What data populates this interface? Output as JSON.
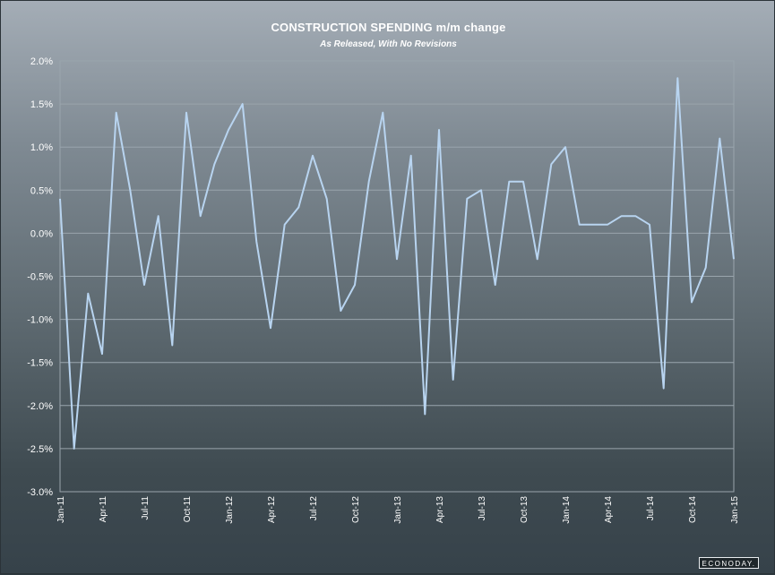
{
  "header": {
    "title": "CONSTRUCTION SPENDING m/m change",
    "subtitle": "As Released, With No Revisions"
  },
  "branding": {
    "logo_text": "ECONODAY."
  },
  "colors": {
    "line": "#b8d4f0",
    "grid": "#9aa5ad",
    "text": "#ffffff"
  },
  "chart_data": {
    "type": "line",
    "title": "CONSTRUCTION SPENDING m/m change",
    "subtitle": "As Released, With No Revisions",
    "xlabel": "",
    "ylabel": "",
    "ylim": [
      -3.0,
      2.0
    ],
    "y_ticks": [
      2.0,
      1.5,
      1.0,
      0.5,
      0.0,
      -0.5,
      -1.0,
      -1.5,
      -2.0,
      -2.5,
      -3.0
    ],
    "y_tick_labels": [
      "2.0%",
      "1.5%",
      "1.0%",
      "0.5%",
      "0.0%",
      "-0.5%",
      "-1.0%",
      "-1.5%",
      "-2.0%",
      "-2.5%",
      "-3.0%"
    ],
    "x_tick_labels": [
      "Jan-11",
      "Apr-11",
      "Jul-11",
      "Oct-11",
      "Jan-12",
      "Apr-12",
      "Jul-12",
      "Oct-12",
      "Jan-13",
      "Apr-13",
      "Jul-13",
      "Oct-13",
      "Jan-14",
      "Apr-14",
      "Jul-14",
      "Oct-14",
      "Jan-15"
    ],
    "x_tick_every": 3,
    "grid": true,
    "legend": "none",
    "series": [
      {
        "values": [
          0.4,
          -2.5,
          -0.7,
          -1.4,
          1.4,
          0.5,
          -0.6,
          0.2,
          -1.3,
          1.4,
          0.2,
          0.8,
          1.2,
          1.5,
          -0.1,
          -1.1,
          0.1,
          0.3,
          0.9,
          0.4,
          -0.9,
          -0.6,
          0.6,
          1.4,
          -0.3,
          0.9,
          -2.1,
          1.2,
          -1.7,
          0.4,
          0.5,
          -0.6,
          0.6,
          0.6,
          -0.3,
          0.8,
          1.0,
          0.1,
          0.1,
          0.1,
          0.2,
          0.2,
          0.1,
          -1.8,
          1.8,
          -0.8,
          -0.4,
          1.1,
          -0.3
        ]
      }
    ]
  }
}
